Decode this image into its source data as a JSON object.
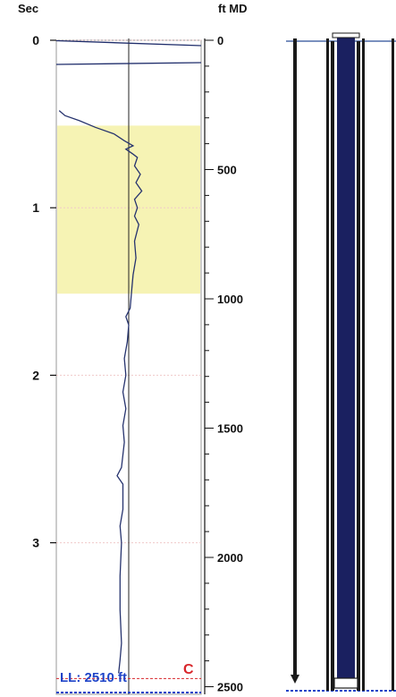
{
  "chart_data": {
    "type": "line",
    "left_axis": {
      "label": "Sec",
      "range": [
        0,
        3.8
      ],
      "ticks": [
        "0",
        "1",
        "2",
        "3"
      ]
    },
    "right_axis": {
      "label": "ft MD",
      "range": [
        0,
        2520
      ],
      "ticks": [
        "0",
        "500",
        "1000",
        "1500",
        "2000",
        "2500"
      ]
    },
    "highlight_band": {
      "from_ft": 330,
      "to_ft": 980,
      "color": "#f6f3b4"
    },
    "limit_line": {
      "label": "LL: 2510 ft",
      "value_ft": 2510,
      "color": "#d8262b"
    },
    "marker_label": "C",
    "series": [
      {
        "points": [
          [
            0.0,
            0.3
          ],
          [
            0.15,
            0.3
          ],
          [
            0.42,
            0.02
          ],
          [
            0.45,
            0.06
          ],
          [
            0.48,
            0.16
          ],
          [
            0.52,
            0.27
          ],
          [
            0.56,
            0.4
          ],
          [
            0.6,
            0.47
          ],
          [
            0.63,
            0.53
          ],
          [
            0.65,
            0.48
          ],
          [
            0.68,
            0.53
          ],
          [
            0.7,
            0.56
          ],
          [
            0.75,
            0.54
          ],
          [
            0.8,
            0.58
          ],
          [
            0.85,
            0.55
          ],
          [
            0.9,
            0.59
          ],
          [
            0.95,
            0.54
          ],
          [
            1.0,
            0.56
          ],
          [
            1.05,
            0.54
          ],
          [
            1.1,
            0.57
          ],
          [
            1.2,
            0.54
          ],
          [
            1.3,
            0.55
          ],
          [
            1.4,
            0.53
          ],
          [
            1.5,
            0.52
          ],
          [
            1.6,
            0.51
          ],
          [
            1.65,
            0.48
          ],
          [
            1.7,
            0.5
          ],
          [
            1.8,
            0.49
          ],
          [
            1.9,
            0.47
          ],
          [
            2.0,
            0.48
          ],
          [
            2.1,
            0.46
          ],
          [
            2.2,
            0.48
          ],
          [
            2.3,
            0.46
          ],
          [
            2.4,
            0.47
          ],
          [
            2.55,
            0.45
          ],
          [
            2.6,
            0.42
          ],
          [
            2.65,
            0.46
          ],
          [
            2.8,
            0.46
          ],
          [
            2.9,
            0.44
          ],
          [
            3.0,
            0.45
          ],
          [
            3.2,
            0.44
          ],
          [
            3.4,
            0.44
          ],
          [
            3.6,
            0.45
          ],
          [
            3.7,
            0.44
          ],
          [
            3.78,
            0.43
          ]
        ]
      }
    ],
    "grid": true,
    "wellbore": {
      "tubing_color": "#1a2060",
      "casing_color": "#1a1a1a"
    }
  }
}
